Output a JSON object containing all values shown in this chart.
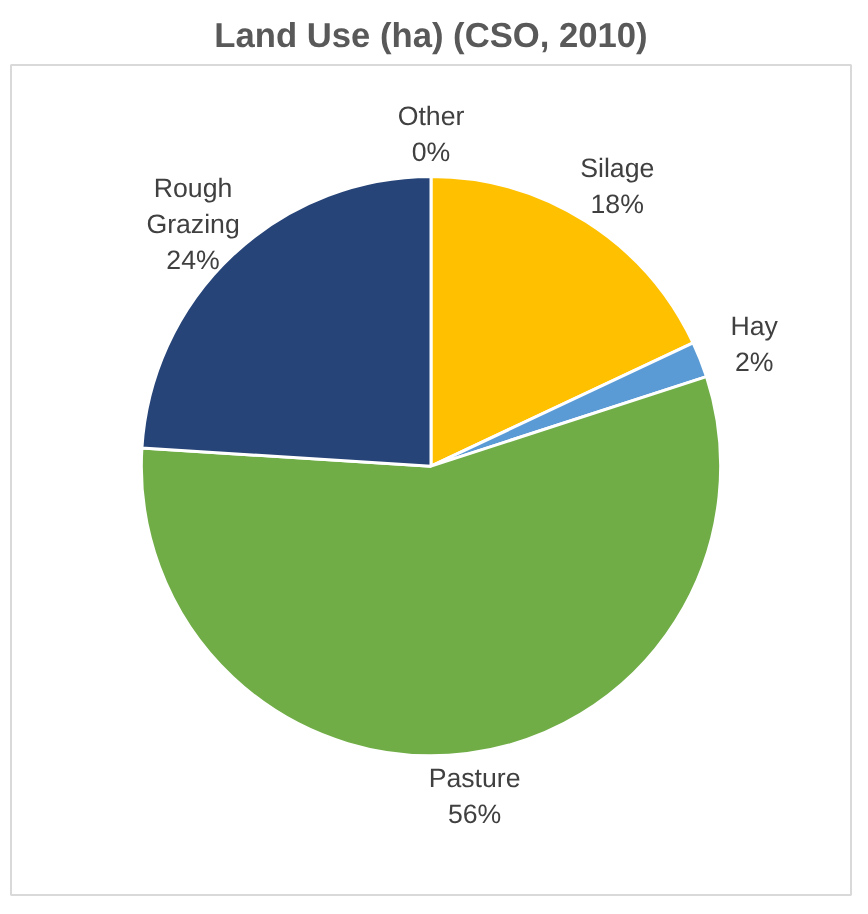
{
  "chart_data": {
    "type": "pie",
    "title": "Land Use (ha) (CSO, 2010)",
    "categories": [
      "Silage",
      "Hay",
      "Pasture",
      "Rough Grazing",
      "Other"
    ],
    "values": [
      18,
      2,
      56,
      24,
      0
    ],
    "colors": [
      "#ffc000",
      "#5b9bd5",
      "#70ad47",
      "#264478",
      "#a5a5a5"
    ],
    "value_labels": [
      "18%",
      "2%",
      "56%",
      "24%",
      "0%"
    ]
  }
}
